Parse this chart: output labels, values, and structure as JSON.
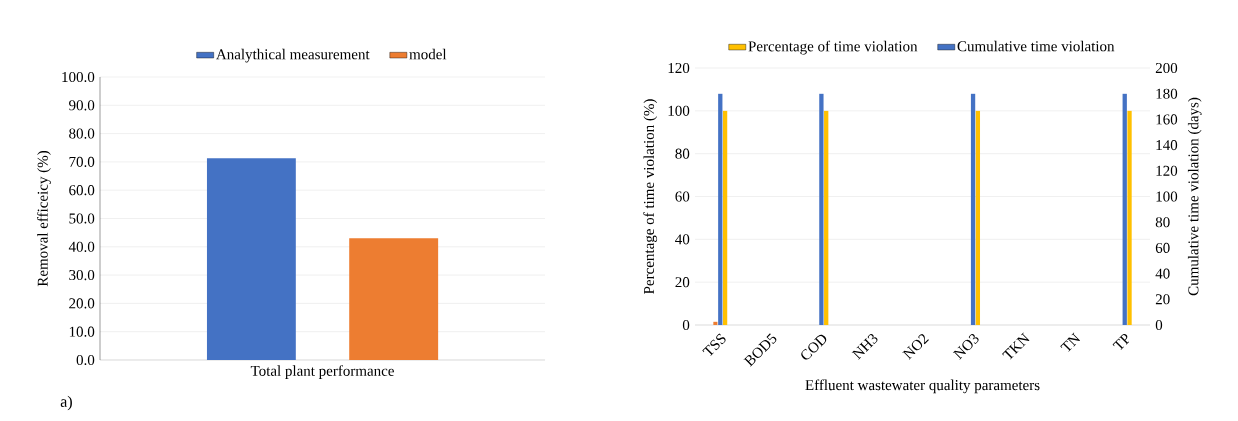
{
  "chart_data": [
    {
      "type": "bar",
      "categories": [
        "Total plant performance"
      ],
      "ylabel": "Removal efficeicy (%)",
      "ylim": [
        0,
        100
      ],
      "yticks": [
        {
          "value": 0,
          "label": "0.0"
        },
        {
          "value": 10,
          "label": "10.0"
        },
        {
          "value": 20,
          "label": "20.0"
        },
        {
          "value": 30,
          "label": "30.0"
        },
        {
          "value": 40,
          "label": "40.0"
        },
        {
          "value": 50,
          "label": "50.0"
        },
        {
          "value": 60,
          "label": "60.0"
        },
        {
          "value": 70,
          "label": "70.0"
        },
        {
          "value": 80,
          "label": "80.0"
        },
        {
          "value": 90,
          "label": "90.0"
        },
        {
          "value": 100,
          "label": "100.0"
        }
      ],
      "series": [
        {
          "name": "Analythical measurement",
          "color": "#4472c4",
          "values": [
            71.3
          ]
        },
        {
          "name": "model",
          "color": "#ed7d31",
          "values": [
            43.0
          ]
        }
      ],
      "grid": "y",
      "legend": "top",
      "annotations": [
        "a)"
      ]
    },
    {
      "type": "bar",
      "categories": [
        "TSS",
        "BOD5",
        "COD",
        "NH3",
        "NO2",
        "NO3",
        "TKN",
        "TN",
        "TP"
      ],
      "xlabel": "Effluent wastewater quality parameters",
      "ylabel": "Percentage of time violation (%)",
      "y2label": "Cumulative time violation (days)",
      "ylim": [
        0,
        120
      ],
      "yticks": [
        0,
        20,
        40,
        60,
        80,
        100,
        120
      ],
      "y2lim": [
        0,
        200
      ],
      "y2ticks": [
        0,
        20,
        40,
        60,
        80,
        100,
        120,
        140,
        160,
        180,
        200
      ],
      "series": [
        {
          "color": "#ed7d31",
          "values": [
            1.5,
            null,
            null,
            null,
            null,
            null,
            null,
            null,
            null
          ]
        },
        {
          "name": "Cumulative time violation",
          "color": "#4472c4",
          "axis": "y2",
          "values": [
            180,
            0,
            180,
            0,
            0,
            180,
            0,
            0,
            180
          ]
        },
        {
          "name": "Percentage of time violation",
          "color": "#ffc000",
          "values": [
            100,
            0,
            100,
            0,
            0,
            100,
            0,
            0,
            100
          ]
        }
      ],
      "grid": "y",
      "legend": "top"
    }
  ]
}
